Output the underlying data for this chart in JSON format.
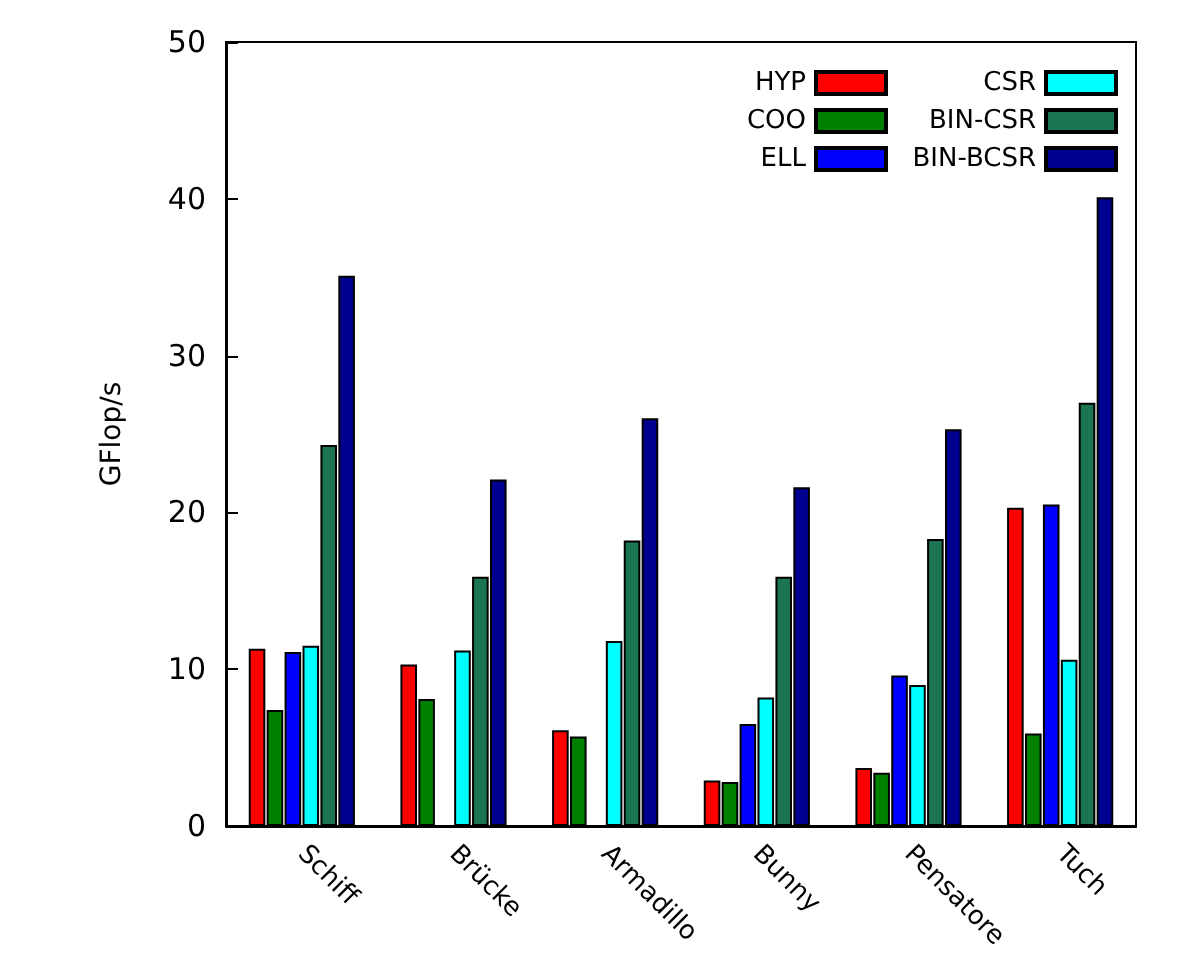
{
  "chart_data": {
    "type": "bar",
    "ylabel": "GFlop/s",
    "categories": [
      "Schiff",
      "Brücke",
      "Armadillo",
      "Bunny",
      "Pensatore",
      "Tuch"
    ],
    "series": [
      {
        "name": "HYP",
        "color": "#ff0000",
        "values": [
          11.3,
          10.3,
          6.1,
          2.9,
          3.7,
          20.3
        ]
      },
      {
        "name": "COO",
        "color": "#008000",
        "values": [
          7.4,
          8.1,
          5.7,
          2.8,
          3.4,
          5.9
        ]
      },
      {
        "name": "ELL",
        "color": "#0000ff",
        "values": [
          11.1,
          null,
          null,
          6.5,
          9.6,
          20.5
        ]
      },
      {
        "name": "CSR",
        "color": "#00ffff",
        "values": [
          11.5,
          11.2,
          11.8,
          8.2,
          9.0,
          10.6
        ]
      },
      {
        "name": "BIN-CSR",
        "color": "#1a7550",
        "values": [
          24.3,
          15.9,
          18.2,
          15.9,
          18.3,
          27.0
        ]
      },
      {
        "name": "BIN-BCSR",
        "color": "#000090",
        "values": [
          35.1,
          22.1,
          26.0,
          21.6,
          25.3,
          40.1
        ]
      }
    ],
    "ylim": [
      0,
      50
    ],
    "yticks": [
      0,
      10,
      20,
      30,
      40,
      50
    ],
    "grid": false,
    "legend": "top right"
  }
}
